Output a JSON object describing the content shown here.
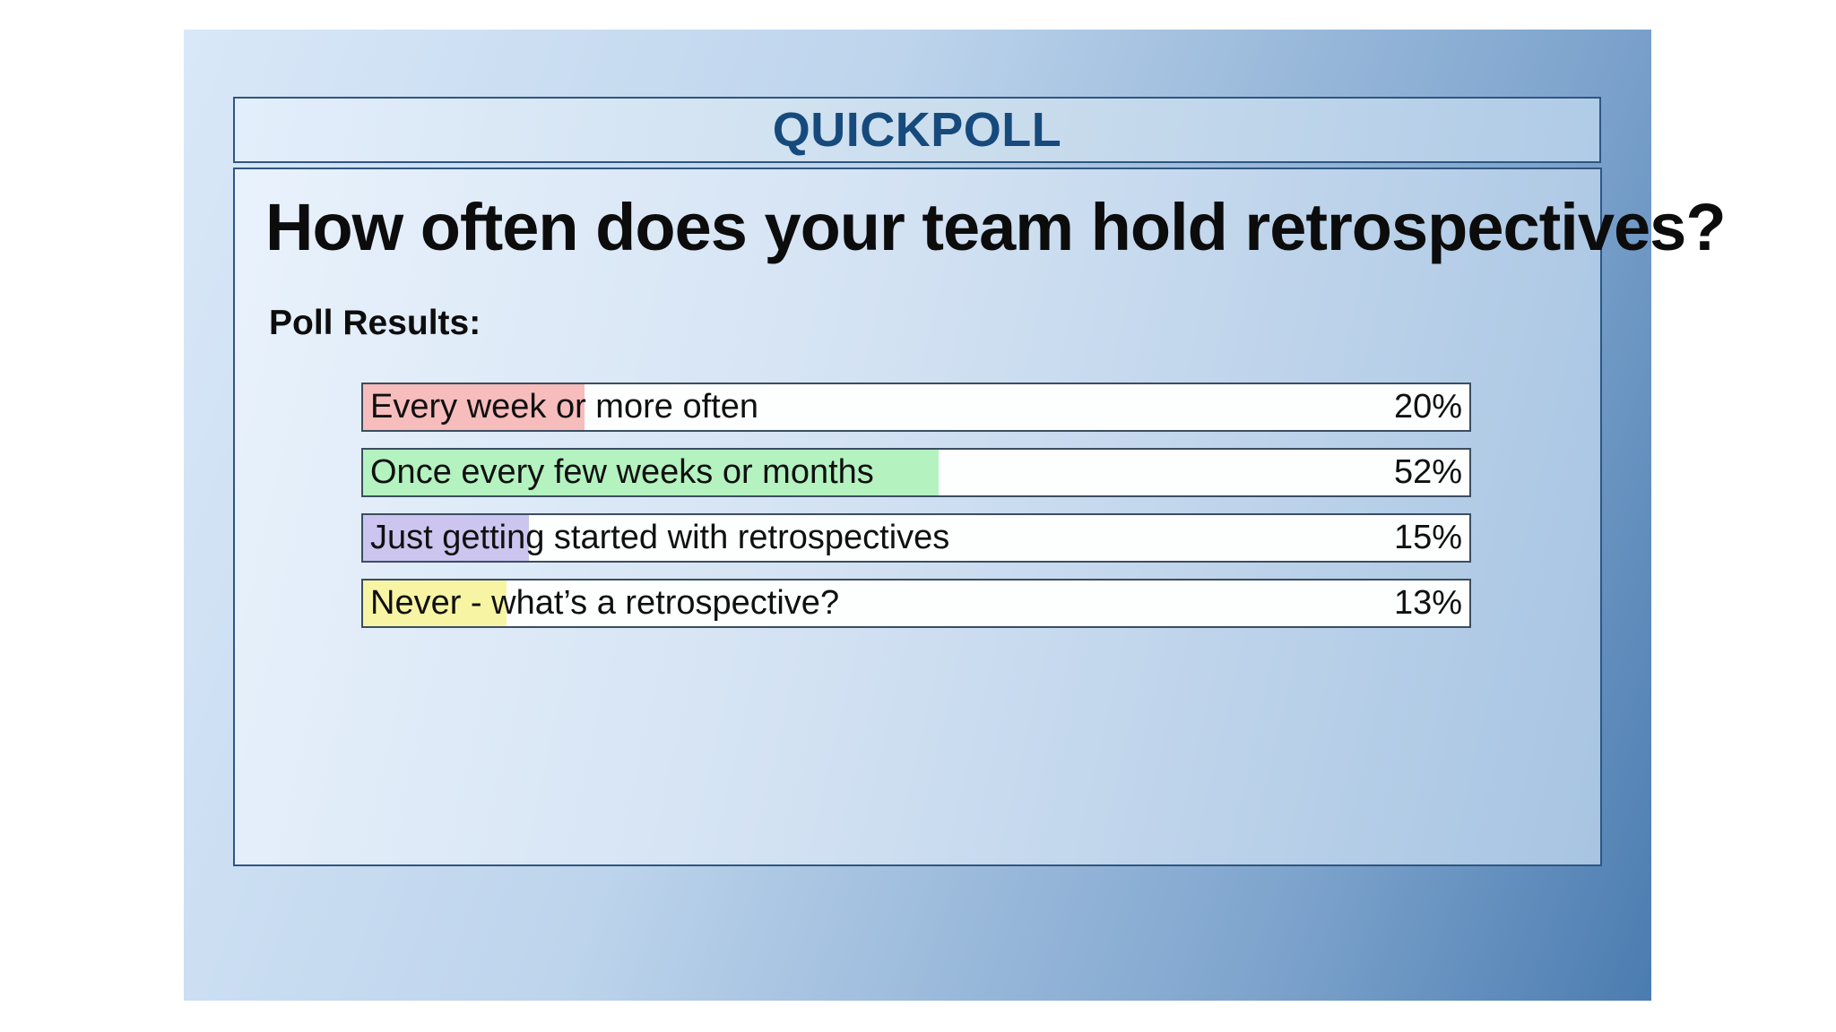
{
  "header": {
    "title": "QUICKPOLL"
  },
  "poll": {
    "question": "How often does your team hold retrospectives?",
    "results_label": "Poll Results:",
    "options": [
      {
        "label": "Every week or more often",
        "value": "20%",
        "pct": 20,
        "color": "#f7bcbc"
      },
      {
        "label": "Once every few weeks or months",
        "value": "52%",
        "pct": 52,
        "color": "#b4f2c0"
      },
      {
        "label": "Just getting started with retrospectives",
        "value": "15%",
        "pct": 15,
        "color": "#cbc5ef"
      },
      {
        "label": "Never - what’s a retrospective?",
        "value": "13%",
        "pct": 13,
        "color": "#f7f4a4"
      }
    ]
  },
  "colors": {
    "panel_gradient_start": "#d9e8f8",
    "panel_gradient_end": "#4b7cb0",
    "box_border": "#2f5680",
    "bar_border": "#3b4d61",
    "bar_background": "#fdfefe",
    "header_title_text": "#174a7c",
    "body_text": "#0d0d0d"
  },
  "chart_data": {
    "type": "bar",
    "orientation": "horizontal",
    "title": "How often does your team hold retrospectives?",
    "categories": [
      "Every week or more often",
      "Once every few weeks or months",
      "Just getting started with retrospectives",
      "Never - what’s a retrospective?"
    ],
    "values": [
      20,
      52,
      15,
      13
    ],
    "unit": "%",
    "xlim": [
      0,
      100
    ],
    "data_labels": [
      "20%",
      "52%",
      "15%",
      "13%"
    ],
    "bar_colors": [
      "#f7bcbc",
      "#b4f2c0",
      "#cbc5ef",
      "#f7f4a4"
    ],
    "legend": false,
    "grid": false
  }
}
